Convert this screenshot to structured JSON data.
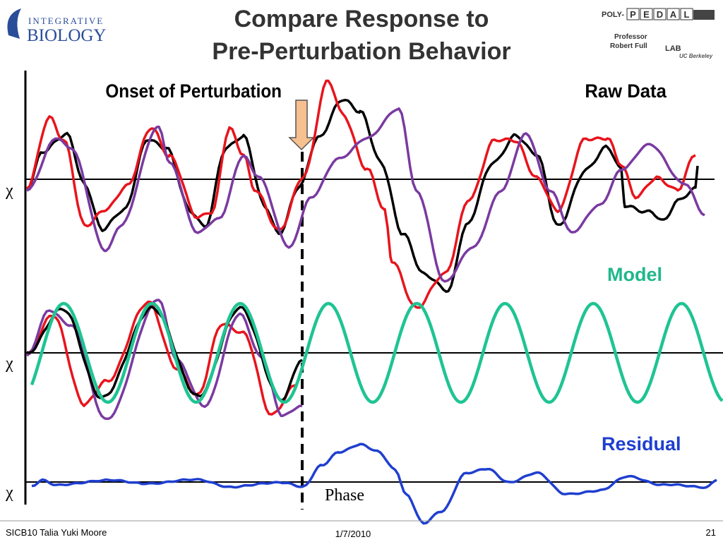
{
  "header": {
    "title_lines": [
      "Compare Response to",
      "Pre-Perturbation Behavior"
    ],
    "left_logo": {
      "top": "INTEGRATIVE",
      "bottom": "BIOLOGY"
    },
    "right_logo": {
      "prefix": "POLY-",
      "letters": [
        "P",
        "E",
        "D",
        "A",
        "L"
      ],
      "person": [
        "Professor",
        "Robert Full"
      ],
      "lab": "LAB",
      "affiliation": "UC Berkeley"
    }
  },
  "labels": {
    "onset": "Onset of Perturbation",
    "raw": "Raw Data",
    "model": "Model",
    "residual": "Residual",
    "axis_symbols": [
      "χ",
      "χ",
      "χ"
    ],
    "phase": "Phase"
  },
  "footer": {
    "left": "SICB10 Talia Yuki Moore",
    "center": "1/7/2010",
    "right": "21"
  }
}
